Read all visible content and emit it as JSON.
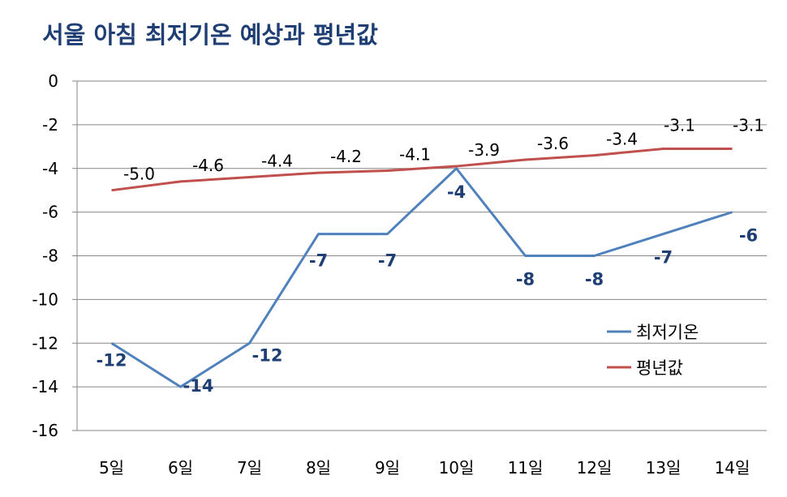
{
  "chart_data": {
    "type": "line",
    "title": "서울 아침 최저기온 예상과 평년값",
    "categories": [
      "5일",
      "6일",
      "7일",
      "8일",
      "9일",
      "10일",
      "11일",
      "12일",
      "13일",
      "14일"
    ],
    "series": [
      {
        "name": "최저기온",
        "color": "#4f81bd",
        "values": [
          -12,
          -14,
          -12,
          -7,
          -7,
          -4,
          -8,
          -8,
          -7,
          -6
        ],
        "labels": [
          "-12",
          "-14",
          "-12",
          "-7",
          "-7",
          "-4",
          "-8",
          "-8",
          "-7",
          "-6"
        ]
      },
      {
        "name": "평년값",
        "color": "#c0504d",
        "values": [
          -5.0,
          -4.6,
          -4.4,
          -4.2,
          -4.1,
          -3.9,
          -3.6,
          -3.4,
          -3.1,
          -3.1
        ],
        "labels": [
          "-5.0",
          "-4.6",
          "-4.4",
          "-4.2",
          "-4.1",
          "-3.9",
          "-3.6",
          "-3.4",
          "-3.1",
          "-3.1"
        ]
      }
    ],
    "yticks": [
      "0",
      "-2",
      "-4",
      "-6",
      "-8",
      "-10",
      "-12",
      "-14",
      "-16"
    ],
    "ylim": [
      -16,
      0
    ],
    "grid": true,
    "legend_position": "right"
  },
  "colors": {
    "title": "#1f3f74",
    "low_labels": "#1f3f74",
    "axis_text": "#000000",
    "grid": "#868686"
  }
}
